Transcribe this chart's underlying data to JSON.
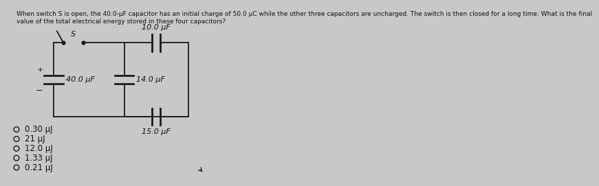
{
  "title_text": "When switch S is open, the 40.0-μF capacitor has an initial charge of 50.0 μC while the other three capacitors are uncharged. The switch is then closed for a long time. What is the final\nvalue of the total electrical energy stored in these four capacitors?",
  "cap_40_label": "40.0 μF",
  "cap_10_label": "10.0 μF",
  "cap_14_label": "14.0 μF",
  "cap_15_label": "15.0 μF",
  "switch_label": "S",
  "plus_label": "+",
  "minus_label": "−",
  "choices": [
    "0.30 μJ",
    "21 μJ",
    "12.0 μJ",
    "1.33 μJ",
    "0.21 μJ"
  ],
  "bg_color": "#c8c8c8",
  "circuit_color": "#1a1a1a",
  "text_color": "#111111",
  "title_fontsize": 6.5,
  "label_fontsize": 8.0,
  "choice_fontsize": 8.5,
  "lw": 1.3
}
